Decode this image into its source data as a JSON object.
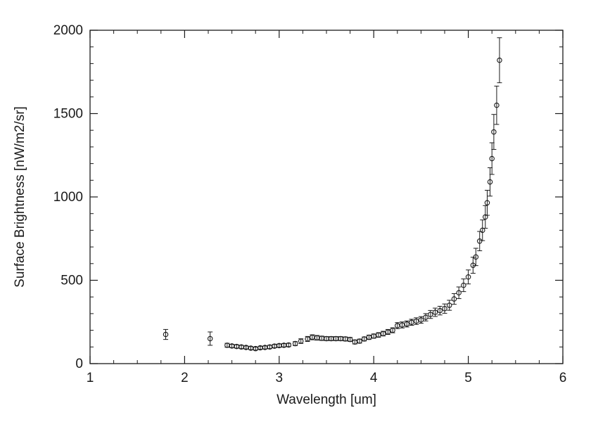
{
  "chart_data": {
    "type": "scatter",
    "title": "",
    "xlabel": "Wavelength [um]",
    "ylabel": "Surface Brightness [nW/m2/sr]",
    "xlim": [
      1,
      6
    ],
    "ylim": [
      0,
      2000
    ],
    "xticks": [
      1,
      2,
      3,
      4,
      5,
      6
    ],
    "yticks": [
      0,
      500,
      1000,
      1500,
      2000
    ],
    "x_minor_step": 0.25,
    "y_minor_step": 100,
    "grid": false,
    "legend": null,
    "marker": "open-circle",
    "error_bars": true,
    "line_color": "#1a1a1a",
    "x": [
      1.8,
      2.27,
      2.45,
      2.5,
      2.55,
      2.6,
      2.65,
      2.7,
      2.75,
      2.8,
      2.85,
      2.9,
      2.95,
      3.0,
      3.05,
      3.1,
      3.17,
      3.23,
      3.3,
      3.35,
      3.4,
      3.45,
      3.5,
      3.55,
      3.6,
      3.65,
      3.7,
      3.75,
      3.8,
      3.85,
      3.9,
      3.95,
      4.0,
      4.05,
      4.1,
      4.15,
      4.2,
      4.25,
      4.3,
      4.35,
      4.4,
      4.45,
      4.5,
      4.55,
      4.6,
      4.65,
      4.7,
      4.75,
      4.8,
      4.85,
      4.9,
      4.95,
      5.0,
      5.05,
      5.08,
      5.12,
      5.15,
      5.18,
      5.2,
      5.23,
      5.25,
      5.27,
      5.3,
      5.33
    ],
    "y": [
      175,
      150,
      110,
      106,
      103,
      100,
      97,
      93,
      90,
      95,
      97,
      100,
      105,
      108,
      110,
      112,
      120,
      135,
      148,
      158,
      155,
      152,
      150,
      150,
      150,
      150,
      148,
      145,
      130,
      135,
      148,
      158,
      165,
      172,
      180,
      190,
      200,
      228,
      232,
      238,
      248,
      255,
      262,
      278,
      295,
      308,
      318,
      330,
      350,
      388,
      425,
      470,
      520,
      590,
      640,
      735,
      800,
      880,
      965,
      1090,
      1230,
      1390,
      1550,
      1820
    ],
    "yerr": [
      30,
      40,
      12,
      10,
      10,
      10,
      9,
      9,
      9,
      9,
      9,
      10,
      10,
      10,
      10,
      10,
      12,
      14,
      15,
      15,
      14,
      13,
      12,
      12,
      12,
      12,
      12,
      12,
      12,
      12,
      12,
      13,
      13,
      14,
      14,
      15,
      15,
      18,
      18,
      18,
      18,
      20,
      20,
      22,
      24,
      25,
      26,
      28,
      30,
      32,
      35,
      38,
      42,
      48,
      52,
      58,
      62,
      68,
      75,
      85,
      95,
      105,
      115,
      135
    ]
  }
}
